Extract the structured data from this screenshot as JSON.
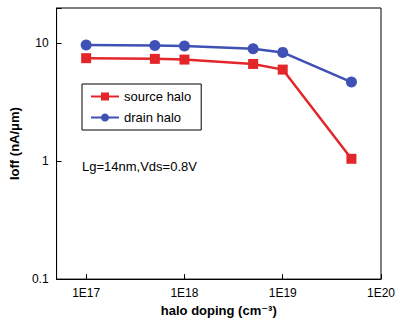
{
  "chart_data": {
    "type": "line",
    "x_label": "halo doping (cm⁻³)",
    "y_label": "Ioff (nA/μm)",
    "annotation": "Lg=14nm,Vds=0.8V",
    "x": [
      1e+17,
      5e+17,
      1e+18,
      5e+18,
      1e+19,
      5e+19
    ],
    "series": [
      {
        "name": "source halo",
        "color": "#e3262a",
        "marker": "square",
        "values": [
          7.5,
          7.4,
          7.3,
          6.7,
          6.0,
          1.05
        ]
      },
      {
        "name": "drain halo",
        "color": "#3f51b5",
        "marker": "circle",
        "values": [
          9.7,
          9.6,
          9.5,
          9.0,
          8.4,
          4.7
        ]
      }
    ],
    "xlim": [
      5e+16,
      1e+20
    ],
    "xticks": [
      {
        "value": 1e+17,
        "label": "1E17"
      },
      {
        "value": 1e+18,
        "label": "1E18"
      },
      {
        "value": 1e+19,
        "label": "1E19"
      },
      {
        "value": 1e+20,
        "label": "1E20"
      }
    ],
    "ylim": [
      0.1,
      20
    ],
    "yticks": [
      0.1,
      1,
      10
    ],
    "log": true,
    "grid": false,
    "legend": "upper left"
  }
}
